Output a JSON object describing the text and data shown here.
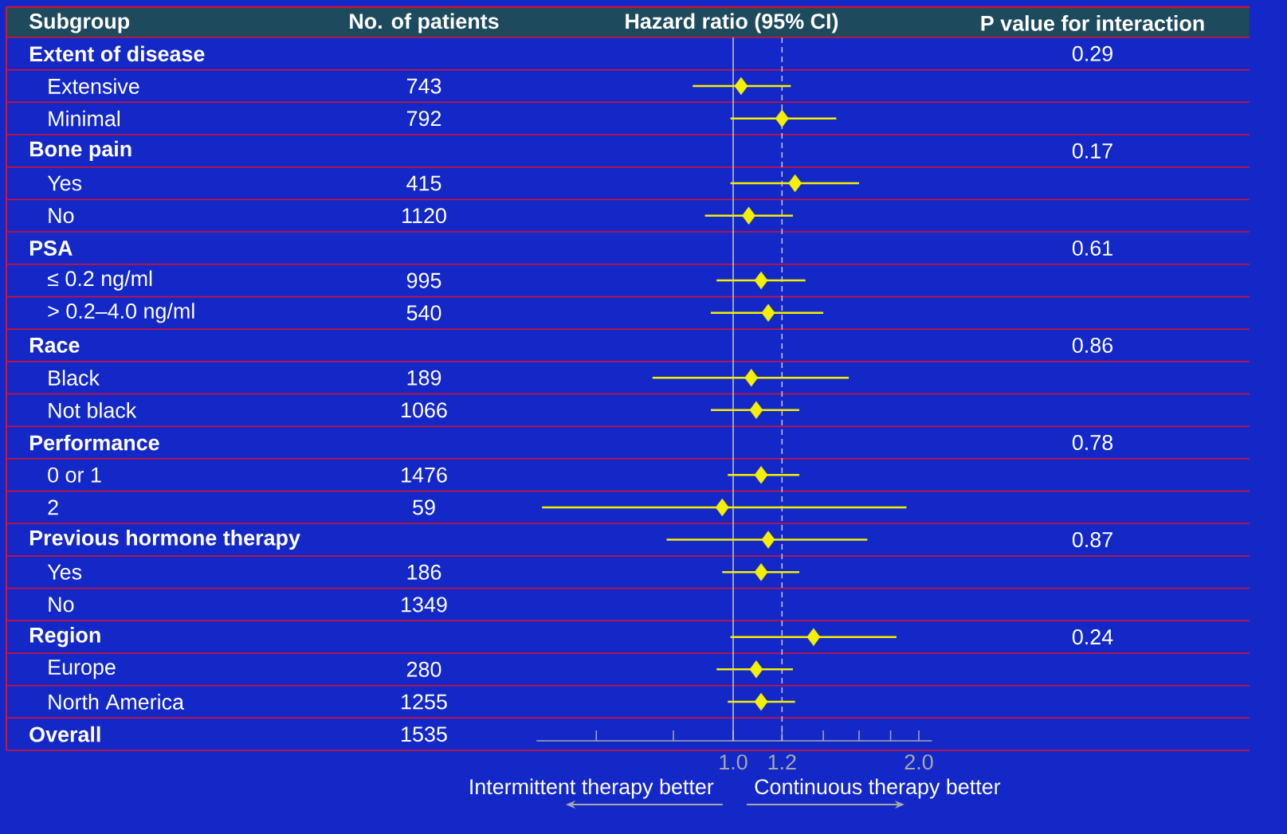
{
  "chart_data": [
    {
      "type": "other",
      "ylabel": "Subgroup",
      "data_labels": true,
      "categories": [
        "Extent of disease",
        "Extensive",
        "Minimal",
        "Bone pain",
        "Yes",
        "No",
        "PSA",
        "≤ 0.2 ng/ml",
        "> 0.2–4.0 ng/ml",
        "Race",
        "Black",
        "Not black",
        "Performance",
        "0 or 1",
        "2",
        "Previous hormone therapy",
        "Yes",
        "No",
        "Region",
        "Europe",
        "North America",
        "Overall"
      ],
      "series": [
        {
          "name": "No. of patients",
          "values": [
            null,
            743,
            792,
            null,
            415,
            1120,
            null,
            995,
            540,
            null,
            189,
            1066,
            null,
            1476,
            59,
            null,
            186,
            1349,
            null,
            280,
            1255,
            1535
          ]
        },
        {
          "name": "P value for interaction",
          "values": [
            0.29,
            null,
            null,
            0.17,
            null,
            null,
            0.61,
            null,
            null,
            0.86,
            null,
            null,
            0.78,
            null,
            null,
            0.87,
            null,
            null,
            0.24,
            null,
            null,
            null
          ]
        }
      ]
    },
    {
      "type": "scatter",
      "orientation": "horizontal",
      "title": "Hazard ratio (95% CI)",
      "color": "#f5f000",
      "marker": "diamond",
      "log": "x",
      "categories": [
        null,
        null,
        null,
        null,
        null,
        null,
        null,
        null,
        null,
        null,
        null,
        null,
        null,
        null,
        null,
        null,
        null,
        null,
        null,
        null,
        null,
        null
      ],
      "values": [
        null,
        1.03,
        1.2,
        null,
        1.26,
        1.06,
        null,
        1.11,
        1.14,
        null,
        1.07,
        1.09,
        null,
        1.11,
        0.96,
        1.14,
        1.11,
        null,
        1.35,
        1.09,
        1.11,
        null
      ],
      "errors": [
        null,
        [
          0.86,
          1.24
        ],
        [
          0.99,
          1.47
        ],
        null,
        [
          0.99,
          1.6
        ],
        [
          0.9,
          1.25
        ],
        null,
        [
          0.94,
          1.31
        ],
        [
          0.92,
          1.4
        ],
        null,
        [
          0.74,
          1.54
        ],
        [
          0.92,
          1.28
        ],
        null,
        [
          0.98,
          1.28
        ],
        [
          0.49,
          1.91
        ],
        [
          0.78,
          1.65
        ],
        [
          0.96,
          1.28
        ],
        null,
        [
          0.99,
          1.84
        ],
        [
          0.94,
          1.25
        ],
        [
          0.98,
          1.26
        ],
        null
      ],
      "xlim": [
        0.48,
        2.1
      ],
      "xticks": [
        {
          "value": 0.6,
          "label": null
        },
        {
          "value": 0.8,
          "label": null
        },
        {
          "value": 1.0,
          "label": "1.0"
        },
        {
          "value": 1.2,
          "label": "1.2"
        },
        {
          "value": 1.4,
          "label": null
        },
        {
          "value": 1.6,
          "label": null
        },
        {
          "value": 1.8,
          "label": null
        },
        {
          "value": 2.0,
          "label": "2.0"
        }
      ],
      "ref_lines": [
        {
          "axis": "x",
          "value": 1.0,
          "color": "#c8c8c8",
          "line_style": "solid"
        },
        {
          "axis": "x",
          "value": 1.2,
          "color": "#c8c8c8",
          "line_style": "dashed"
        }
      ],
      "annotations": [
        "Intermittent therapy better",
        "Continuous therapy better"
      ]
    }
  ]
}
